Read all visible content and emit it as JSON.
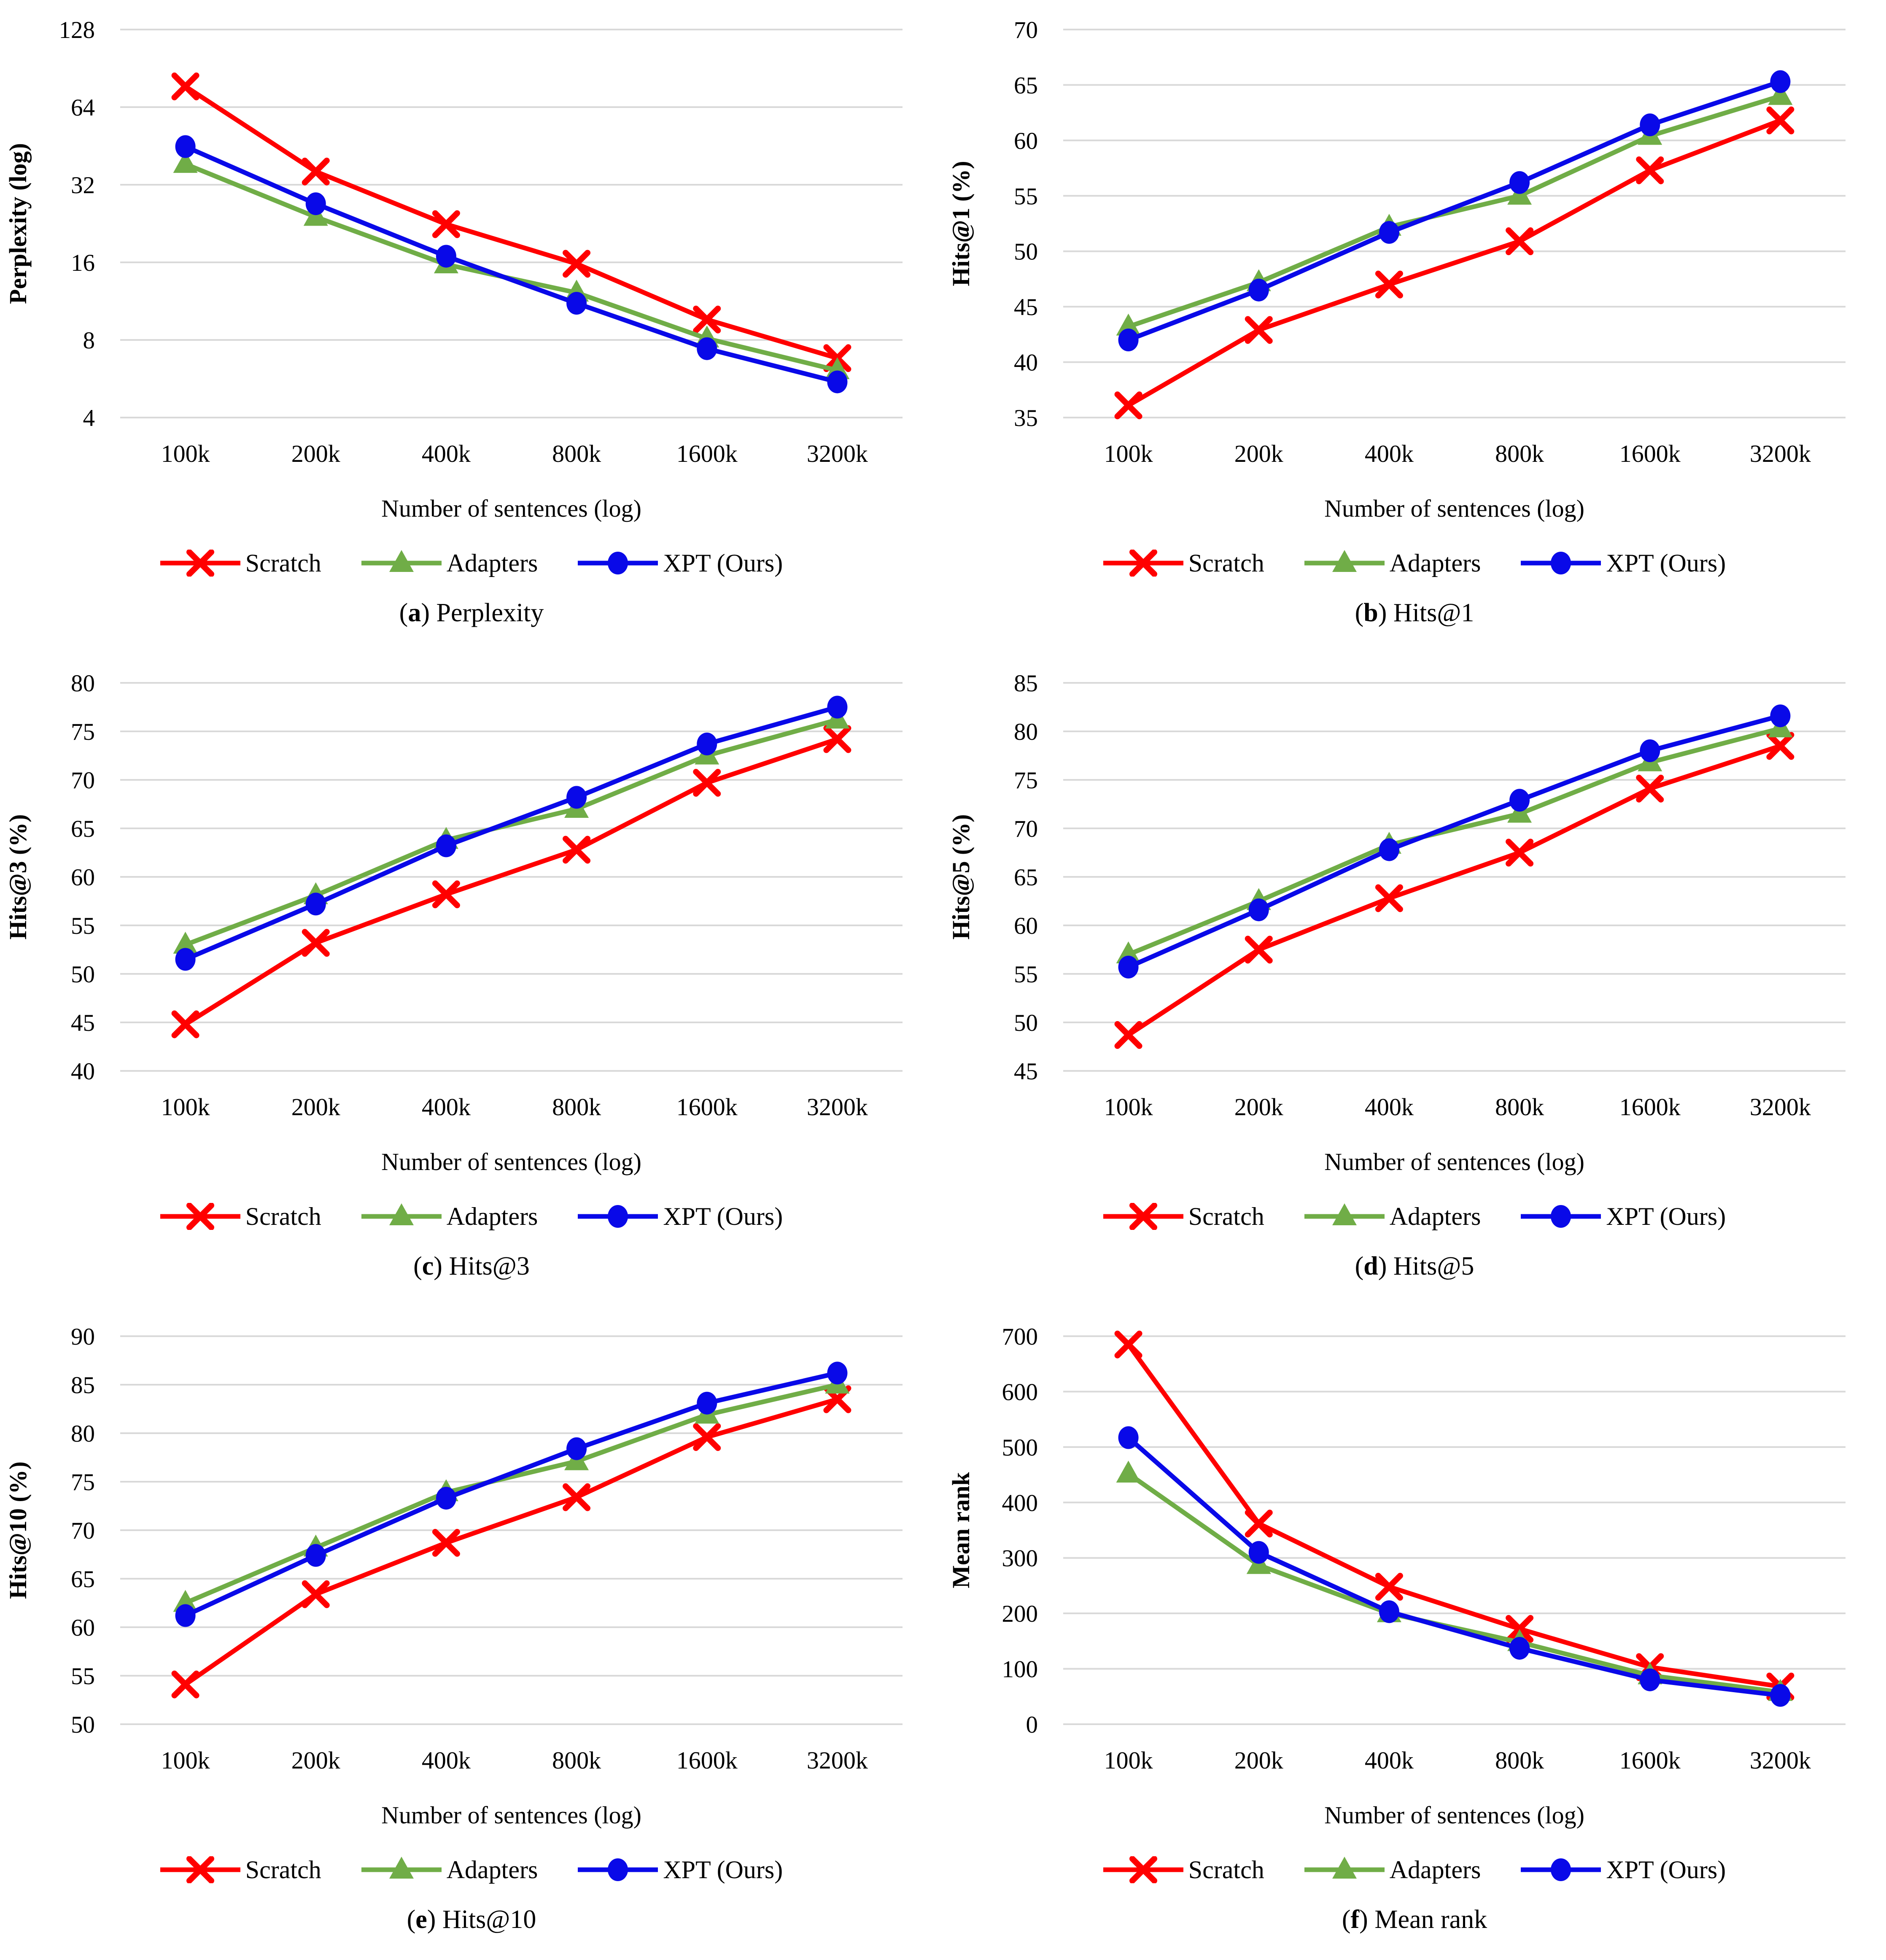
{
  "figure": {
    "caption_open": "(",
    "caption_close": ")",
    "x_axis_label": "Number of sentences (log)",
    "x_categories": [
      "100k",
      "200k",
      "400k",
      "800k",
      "1600k",
      "3200k"
    ],
    "grid_color": "#D9D9D9",
    "background_color": "#FFFFFF",
    "text_color": "#000000",
    "legend_position": "bottom",
    "series": [
      {
        "name": "Scratch",
        "color": "#FF0000",
        "marker": "x"
      },
      {
        "name": "Adapters",
        "color": "#70AD47",
        "marker": "triangle"
      },
      {
        "name": "XPT (Ours)",
        "color": "#0909E8",
        "marker": "circle"
      }
    ]
  },
  "chart_data": [
    {
      "type": "line",
      "caption_letter": "a",
      "title": "Perplexity",
      "ylabel": "Perplexity (log)",
      "xlabel": "Number of sentences (log)",
      "y_scale": "log2",
      "y_ticks": [
        4,
        8,
        16,
        32,
        64,
        128
      ],
      "ylim": [
        4,
        128
      ],
      "categories": [
        "100k",
        "200k",
        "400k",
        "800k",
        "1600k",
        "3200k"
      ],
      "grid": "horizontal",
      "series": [
        {
          "name": "Scratch",
          "values": [
            77,
            36,
            22.5,
            15.8,
            9.6,
            6.8
          ]
        },
        {
          "name": "Adapters",
          "values": [
            38.5,
            24,
            15.7,
            12.2,
            8.1,
            6.1
          ]
        },
        {
          "name": "XPT (Ours)",
          "values": [
            45,
            27,
            16.9,
            11.1,
            7.4,
            5.5
          ]
        }
      ]
    },
    {
      "type": "line",
      "caption_letter": "b",
      "title": "Hits@1",
      "ylabel": "Hits@1 (%)",
      "xlabel": "Number of sentences (log)",
      "y_scale": "linear",
      "y_ticks": [
        35,
        40,
        45,
        50,
        55,
        60,
        65,
        70
      ],
      "ylim": [
        35,
        70
      ],
      "categories": [
        "100k",
        "200k",
        "400k",
        "800k",
        "1600k",
        "3200k"
      ],
      "grid": "horizontal",
      "series": [
        {
          "name": "Scratch",
          "values": [
            36.1,
            42.9,
            47.0,
            50.9,
            57.3,
            61.8
          ]
        },
        {
          "name": "Adapters",
          "values": [
            43.2,
            47.2,
            52.2,
            55.0,
            60.4,
            64.0
          ]
        },
        {
          "name": "XPT (Ours)",
          "values": [
            42.0,
            46.5,
            51.7,
            56.2,
            61.4,
            65.3
          ]
        }
      ]
    },
    {
      "type": "line",
      "caption_letter": "c",
      "title": "Hits@3",
      "ylabel": "Hits@3 (%)",
      "xlabel": "Number of sentences (log)",
      "y_scale": "linear",
      "y_ticks": [
        40,
        45,
        50,
        55,
        60,
        65,
        70,
        75,
        80
      ],
      "ylim": [
        40,
        80
      ],
      "categories": [
        "100k",
        "200k",
        "400k",
        "800k",
        "1600k",
        "3200k"
      ],
      "grid": "horizontal",
      "series": [
        {
          "name": "Scratch",
          "values": [
            44.8,
            53.2,
            58.2,
            62.8,
            69.7,
            74.2
          ]
        },
        {
          "name": "Adapters",
          "values": [
            53.0,
            58.1,
            63.8,
            67.0,
            72.5,
            76.2
          ]
        },
        {
          "name": "XPT (Ours)",
          "values": [
            51.5,
            57.2,
            63.2,
            68.2,
            73.7,
            77.5
          ]
        }
      ]
    },
    {
      "type": "line",
      "caption_letter": "d",
      "title": "Hits@5",
      "ylabel": "Hits@5 (%)",
      "xlabel": "Number of sentences (log)",
      "y_scale": "linear",
      "y_ticks": [
        45,
        50,
        55,
        60,
        65,
        70,
        75,
        80,
        85
      ],
      "ylim": [
        45,
        85
      ],
      "categories": [
        "100k",
        "200k",
        "400k",
        "800k",
        "1600k",
        "3200k"
      ],
      "grid": "horizontal",
      "series": [
        {
          "name": "Scratch",
          "values": [
            48.7,
            57.5,
            62.8,
            67.5,
            74.1,
            78.5
          ]
        },
        {
          "name": "Adapters",
          "values": [
            57.0,
            62.5,
            68.3,
            71.5,
            76.8,
            80.3
          ]
        },
        {
          "name": "XPT (Ours)",
          "values": [
            55.7,
            61.6,
            67.8,
            72.9,
            78.0,
            81.6
          ]
        }
      ]
    },
    {
      "type": "line",
      "caption_letter": "e",
      "title": "Hits@10",
      "ylabel": "Hits@10 (%)",
      "xlabel": "Number of sentences (log)",
      "y_scale": "linear",
      "y_ticks": [
        50,
        55,
        60,
        65,
        70,
        75,
        80,
        85,
        90
      ],
      "ylim": [
        50,
        90
      ],
      "categories": [
        "100k",
        "200k",
        "400k",
        "800k",
        "1600k",
        "3200k"
      ],
      "grid": "horizontal",
      "series": [
        {
          "name": "Scratch",
          "values": [
            54.1,
            63.4,
            68.7,
            73.4,
            79.6,
            83.5
          ]
        },
        {
          "name": "Adapters",
          "values": [
            62.5,
            68.2,
            73.9,
            77.1,
            81.9,
            85.0
          ]
        },
        {
          "name": "XPT (Ours)",
          "values": [
            61.2,
            67.4,
            73.3,
            78.4,
            83.1,
            86.2
          ]
        }
      ]
    },
    {
      "type": "line",
      "caption_letter": "f",
      "title": "Mean rank",
      "ylabel": "Mean rank",
      "xlabel": "Number of sentences (log)",
      "y_scale": "linear",
      "y_ticks": [
        0,
        100,
        200,
        300,
        400,
        500,
        600,
        700
      ],
      "ylim": [
        0,
        700
      ],
      "categories": [
        "100k",
        "200k",
        "400k",
        "800k",
        "1600k",
        "3200k"
      ],
      "grid": "horizontal",
      "series": [
        {
          "name": "Scratch",
          "values": [
            685,
            362,
            248,
            172,
            103,
            68
          ]
        },
        {
          "name": "Adapters",
          "values": [
            452,
            287,
            200,
            148,
            88,
            58
          ]
        },
        {
          "name": "XPT (Ours)",
          "values": [
            517,
            310,
            203,
            137,
            80,
            52
          ]
        }
      ]
    }
  ]
}
